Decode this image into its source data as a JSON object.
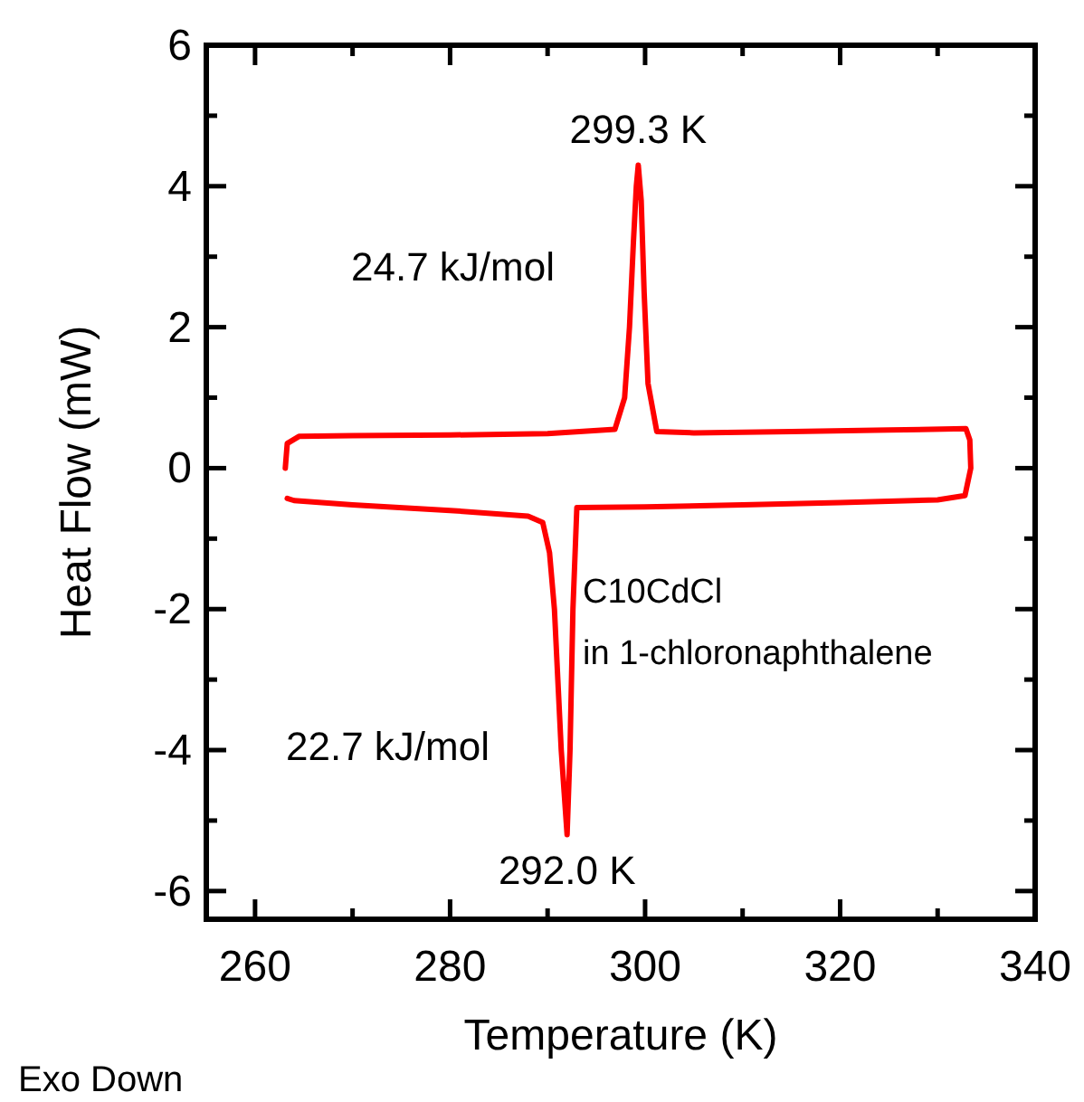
{
  "chart_data": {
    "type": "line",
    "xlabel": "Temperature (K)",
    "ylabel": "Heat Flow (mW)",
    "xlim": [
      255,
      340
    ],
    "xticks": [
      260,
      {
        "value": 270,
        "label": null
      },
      280,
      {
        "value": 290,
        "label": null
      },
      300,
      {
        "value": 310,
        "label": null
      },
      320,
      {
        "value": 330,
        "label": null
      },
      340
    ],
    "ylim": [
      -6.4,
      6
    ],
    "yticks": [
      -6,
      {
        "value": -5,
        "label": null
      },
      -4,
      {
        "value": -3,
        "label": null
      },
      -2,
      {
        "value": -1,
        "label": null
      },
      0,
      {
        "value": 1,
        "label": null
      },
      2,
      {
        "value": 3,
        "label": null
      },
      4,
      {
        "value": 5,
        "label": null
      },
      6
    ],
    "grid": false,
    "marker": "none",
    "line_style": "solid",
    "series": [
      {
        "color": "#ff0000",
        "x": [
          263.1,
          263.3,
          264.5,
          270,
          280,
          290,
          296.9,
          297.9,
          298.4,
          298.8,
          299.1,
          299.3,
          299.6,
          299.9,
          300.3,
          301.2,
          305,
          315,
          325,
          332.9,
          333.3,
          333.4,
          332.8,
          330,
          320,
          310,
          300,
          293,
          292.6,
          292.3,
          292.0,
          291.7,
          291.4,
          290.7,
          290.2,
          289.5,
          288,
          280,
          270,
          264,
          263.3
        ],
        "values": [
          0,
          0.35,
          0.45,
          0.46,
          0.47,
          0.49,
          0.55,
          1.0,
          2.0,
          3.2,
          4.0,
          4.3,
          3.8,
          2.5,
          1.2,
          0.52,
          0.5,
          0.52,
          0.54,
          0.56,
          0.4,
          0,
          -0.39,
          -0.45,
          -0.49,
          -0.52,
          -0.55,
          -0.56,
          -2.0,
          -4.0,
          -5.2,
          -4.6,
          -4.0,
          -2.0,
          -1.2,
          -0.77,
          -0.68,
          -0.6,
          -0.52,
          -0.46,
          -0.43
        ]
      }
    ],
    "annotations": [
      {
        "text": "299.3 K",
        "x": 299.3,
        "y": 4.3
      },
      "24.7 kJ/mol",
      {
        "text": "292.0 K",
        "x": 292.0,
        "y": -5.2
      },
      "22.7 kJ/mol",
      "C10CdCl",
      "in 1-chloronaphthalene",
      "Exo Down"
    ]
  }
}
